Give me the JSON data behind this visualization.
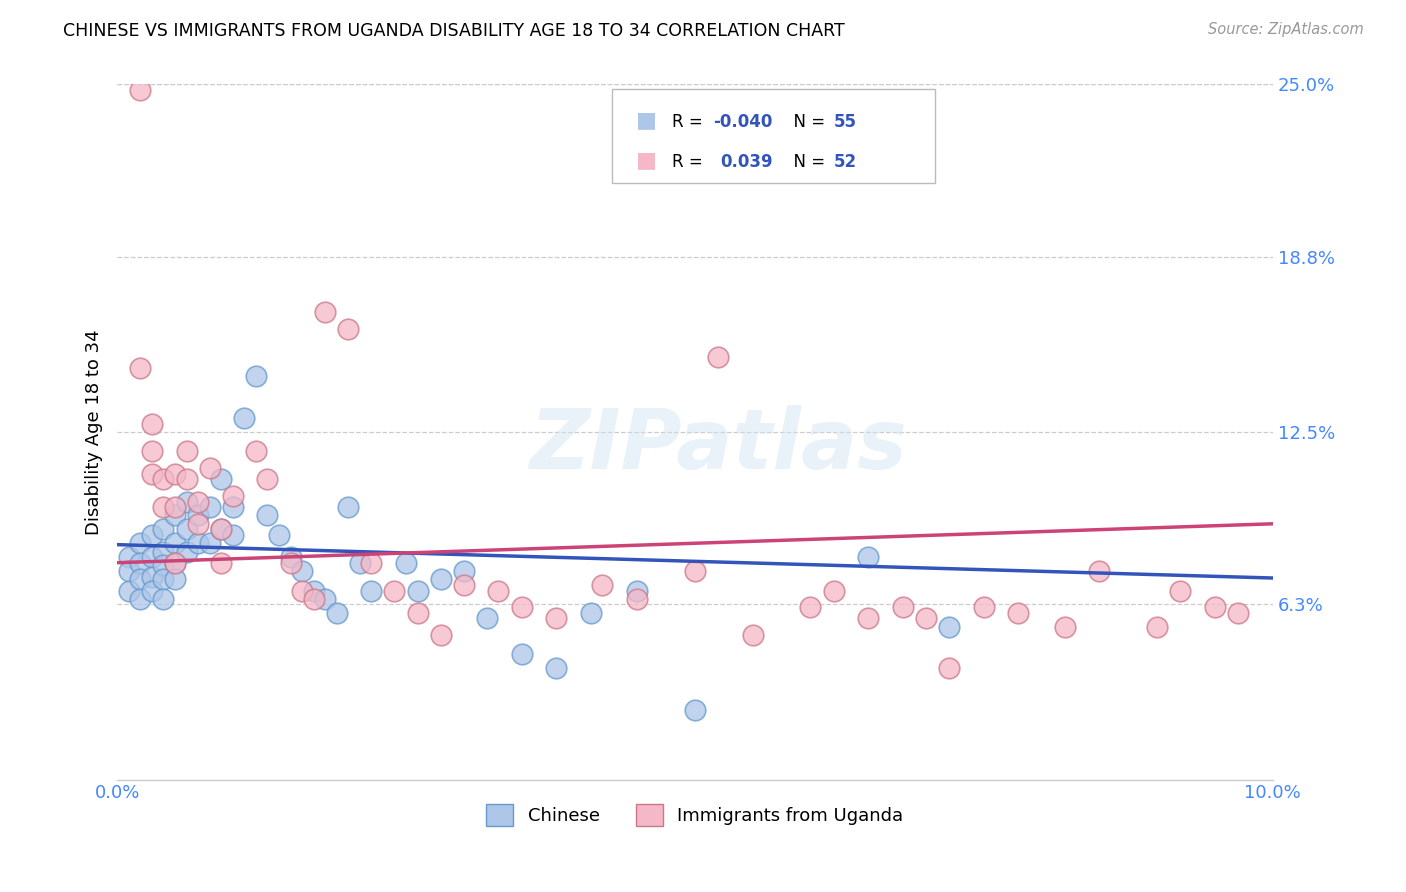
{
  "title": "CHINESE VS IMMIGRANTS FROM UGANDA DISABILITY AGE 18 TO 34 CORRELATION CHART",
  "source": "Source: ZipAtlas.com",
  "ylabel": "Disability Age 18 to 34",
  "x_min": 0.0,
  "x_max": 0.1,
  "y_min": 0.0,
  "y_max": 0.25,
  "x_ticks": [
    0.0,
    0.02,
    0.04,
    0.06,
    0.08,
    0.1
  ],
  "x_tick_labels": [
    "0.0%",
    "",
    "",
    "",
    "",
    "10.0%"
  ],
  "y_ticks": [
    0.063,
    0.125,
    0.188,
    0.25
  ],
  "y_tick_labels": [
    "6.3%",
    "12.5%",
    "18.8%",
    "25.0%"
  ],
  "chinese_color": "#aec6e8",
  "chinese_edge_color": "#6699cc",
  "uganda_color": "#f4b8c8",
  "uganda_edge_color": "#cc7788",
  "chinese_line_color": "#3355bb",
  "uganda_line_color": "#cc4477",
  "watermark_text": "ZIPatlas",
  "chinese_x": [
    0.001,
    0.001,
    0.001,
    0.002,
    0.002,
    0.002,
    0.002,
    0.003,
    0.003,
    0.003,
    0.003,
    0.004,
    0.004,
    0.004,
    0.004,
    0.004,
    0.005,
    0.005,
    0.005,
    0.005,
    0.006,
    0.006,
    0.006,
    0.007,
    0.007,
    0.008,
    0.008,
    0.009,
    0.009,
    0.01,
    0.01,
    0.011,
    0.012,
    0.013,
    0.014,
    0.015,
    0.016,
    0.017,
    0.018,
    0.019,
    0.02,
    0.021,
    0.022,
    0.025,
    0.026,
    0.028,
    0.03,
    0.032,
    0.035,
    0.038,
    0.041,
    0.045,
    0.05,
    0.065,
    0.072
  ],
  "chinese_y": [
    0.08,
    0.075,
    0.068,
    0.085,
    0.078,
    0.072,
    0.065,
    0.088,
    0.08,
    0.073,
    0.068,
    0.09,
    0.082,
    0.077,
    0.072,
    0.065,
    0.095,
    0.085,
    0.078,
    0.072,
    0.1,
    0.09,
    0.082,
    0.095,
    0.085,
    0.098,
    0.085,
    0.108,
    0.09,
    0.098,
    0.088,
    0.13,
    0.145,
    0.095,
    0.088,
    0.08,
    0.075,
    0.068,
    0.065,
    0.06,
    0.098,
    0.078,
    0.068,
    0.078,
    0.068,
    0.072,
    0.075,
    0.058,
    0.045,
    0.04,
    0.06,
    0.068,
    0.025,
    0.08,
    0.055
  ],
  "uganda_x": [
    0.002,
    0.002,
    0.003,
    0.003,
    0.003,
    0.004,
    0.004,
    0.005,
    0.005,
    0.005,
    0.006,
    0.006,
    0.007,
    0.007,
    0.008,
    0.009,
    0.009,
    0.01,
    0.012,
    0.013,
    0.015,
    0.016,
    0.017,
    0.018,
    0.02,
    0.022,
    0.024,
    0.026,
    0.028,
    0.03,
    0.033,
    0.035,
    0.038,
    0.042,
    0.045,
    0.05,
    0.052,
    0.055,
    0.06,
    0.062,
    0.065,
    0.068,
    0.07,
    0.072,
    0.075,
    0.078,
    0.082,
    0.085,
    0.09,
    0.092,
    0.095,
    0.097
  ],
  "uganda_y": [
    0.248,
    0.148,
    0.128,
    0.118,
    0.11,
    0.108,
    0.098,
    0.11,
    0.098,
    0.078,
    0.118,
    0.108,
    0.1,
    0.092,
    0.112,
    0.09,
    0.078,
    0.102,
    0.118,
    0.108,
    0.078,
    0.068,
    0.065,
    0.168,
    0.162,
    0.078,
    0.068,
    0.06,
    0.052,
    0.07,
    0.068,
    0.062,
    0.058,
    0.07,
    0.065,
    0.075,
    0.152,
    0.052,
    0.062,
    0.068,
    0.058,
    0.062,
    0.058,
    0.04,
    0.062,
    0.06,
    0.055,
    0.075,
    0.055,
    0.068,
    0.062,
    0.06
  ],
  "chinese_trend_start_y": 0.0845,
  "chinese_trend_end_y": 0.0725,
  "uganda_trend_start_y": 0.078,
  "uganda_trend_end_y": 0.092
}
